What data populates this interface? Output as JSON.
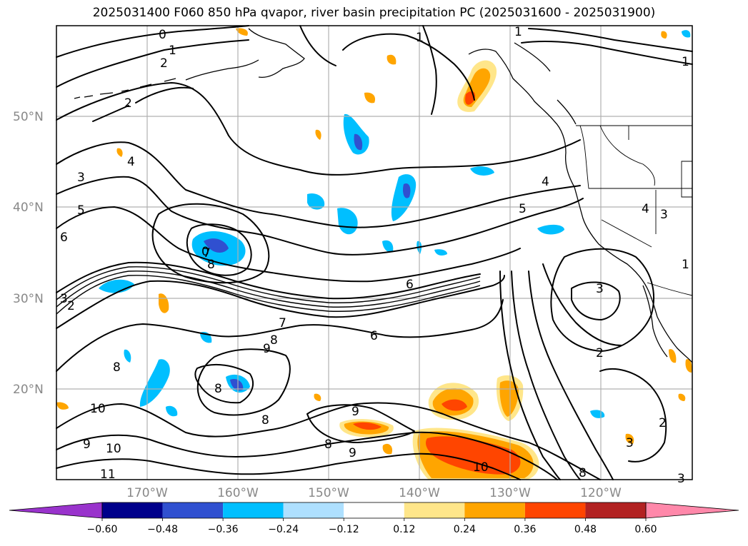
{
  "title": "2025031400 F060 850 hPa qvapor, river basin precipitation PC (2025031600 - 2025031900)",
  "lat_labels": [
    "50°N",
    "40°N",
    "30°N",
    "20°N"
  ],
  "lon_labels": [
    "170°W",
    "160°W",
    "150°W",
    "140°W",
    "130°W",
    "120°W"
  ],
  "colorbar": {
    "ticks": [
      "−0.60",
      "−0.48",
      "−0.36",
      "−0.24",
      "−0.12",
      "0.12",
      "0.24",
      "0.36",
      "0.48",
      "0.60"
    ],
    "colors": [
      "#9933cc",
      "#00008b",
      "#3050d0",
      "#00bfff",
      "#aee0ff",
      "#ffffff",
      "#ffe68a",
      "#ffa500",
      "#ff4500",
      "#b22222",
      "#ff88aa"
    ]
  },
  "contour_labels": [
    "0",
    "1",
    "2",
    "2",
    "3",
    "4",
    "5",
    "6",
    "7",
    "8",
    "9",
    "10",
    "11",
    "6",
    "6",
    "7",
    "8",
    "9",
    "8",
    "8",
    "8",
    "8",
    "9",
    "9",
    "10",
    "10",
    "8",
    "3",
    "2",
    "2",
    "3",
    "4",
    "4",
    "5",
    "3",
    "1",
    "1",
    "1",
    "2",
    "3",
    "0",
    "3",
    "1"
  ]
}
